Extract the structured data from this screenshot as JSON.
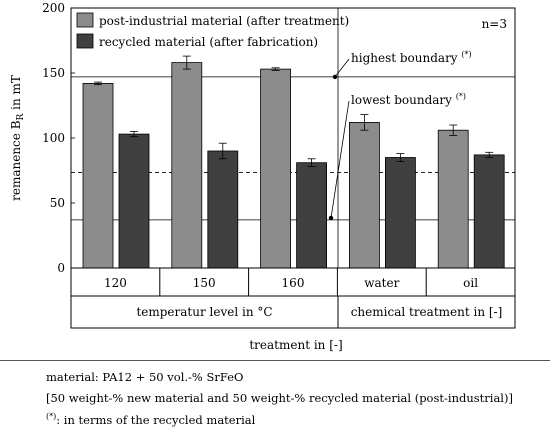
{
  "chart_data": {
    "type": "bar",
    "categories": [
      "120",
      "150",
      "160",
      "water",
      "oil"
    ],
    "series": [
      {
        "name": "post-industrial material (after treatment)",
        "values": [
          142,
          158,
          153,
          112,
          106
        ],
        "errors": [
          1,
          5,
          1,
          6,
          4
        ],
        "color": "#8c8c8c"
      },
      {
        "name": "recycled material (after fabrication)",
        "values": [
          103,
          90,
          81,
          85,
          87
        ],
        "errors": [
          2,
          6,
          3,
          3,
          2
        ],
        "color": "#404040"
      }
    ],
    "ylabel_main": "remanence B",
    "ylabel_sub": "R",
    "ylabel_unit": " in mT",
    "ylim": [
      0,
      200
    ],
    "yticks": [
      "0",
      "50",
      "100",
      "150",
      "200"
    ],
    "annotation_n": "n=3",
    "highest_boundary": {
      "label": "highest boundary",
      "superscript": "(*)",
      "value": 147
    },
    "lowest_boundary": {
      "label": "lowest boundary",
      "superscript": "(*)",
      "value": 37
    },
    "dashed_line_value": 73.5,
    "group_labels": [
      "temperatur level in °C",
      "chemical treatment in [-]"
    ],
    "xlabel": "treatment in [-]",
    "legend_position": "top-left"
  },
  "caption": {
    "line1": "material: PA12 + 50 vol.-% SrFeO",
    "line2": "[50 weight-% new material and 50 weight-% recycled material (post-industrial)]",
    "line3_sup": "(*)",
    "line3": ": in terms of the recycled material"
  }
}
